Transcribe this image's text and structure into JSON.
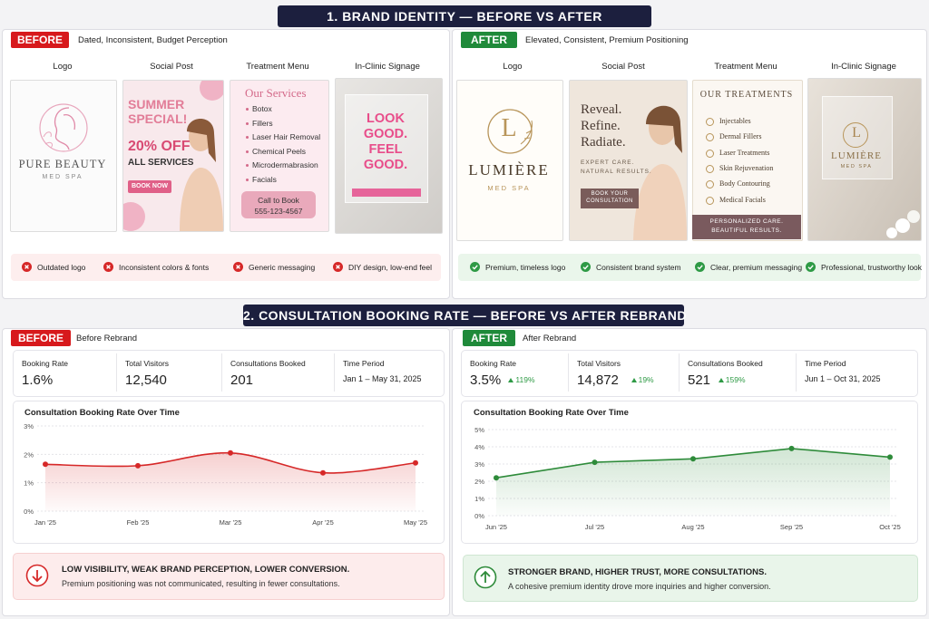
{
  "section1": {
    "title": "1. BRAND IDENTITY — BEFORE VS AFTER",
    "before": {
      "badge": "BEFORE",
      "subtitle": "Dated, Inconsistent, Budget Perception",
      "columns": [
        "Logo",
        "Social Post",
        "Treatment Menu",
        "In-Clinic Signage"
      ],
      "logo": {
        "name": "PURE BEAUTY",
        "tagline": "MED SPA"
      },
      "social": {
        "lines": [
          "SUMMER",
          "SPECIAL!"
        ],
        "offer": "20% OFF",
        "offer_detail": "ALL SERVICES",
        "button": "BOOK NOW"
      },
      "menu": {
        "title": "Our Services",
        "items": [
          "Botox",
          "Fillers",
          "Laser Hair Removal",
          "Chemical Peels",
          "Microdermabrasion",
          "Facials"
        ],
        "cta": [
          "Call to Book",
          "555-123-4567"
        ]
      },
      "signage": [
        "LOOK",
        "GOOD.",
        "FEEL",
        "GOOD."
      ],
      "issues": [
        "Outdated logo",
        "Inconsistent colors & fonts",
        "Generic messaging",
        "DIY design, low-end feel"
      ]
    },
    "after": {
      "badge": "AFTER",
      "subtitle": "Elevated, Consistent, Premium Positioning",
      "columns": [
        "Logo",
        "Social Post",
        "Treatment Menu",
        "In-Clinic Signage"
      ],
      "logo": {
        "monogram": "L",
        "name": "LUMIÈRE",
        "tagline": "MED SPA"
      },
      "social": {
        "lines": [
          "Reveal.",
          "Refine.",
          "Radiate."
        ],
        "detail": [
          "EXPERT CARE.",
          "NATURAL RESULTS."
        ],
        "button": [
          "BOOK YOUR",
          "CONSULTATION"
        ]
      },
      "menu": {
        "title": "OUR TREATMENTS",
        "items": [
          "Injectables",
          "Dermal Fillers",
          "Laser Treatments",
          "Skin Rejuvenation",
          "Body Contouring",
          "Medical Facials"
        ],
        "footer": [
          "PERSONALIZED CARE.",
          "BEAUTIFUL RESULTS."
        ]
      },
      "signage": {
        "monogram": "L",
        "name": "LUMIÈRE",
        "tagline": "MED SPA"
      },
      "benefits": [
        "Premium, timeless logo",
        "Consistent brand system",
        "Clear, premium messaging",
        "Professional, trustworthy look"
      ]
    }
  },
  "section2": {
    "title": "2. CONSULTATION BOOKING RATE — BEFORE VS AFTER REBRAND",
    "before": {
      "badge": "BEFORE",
      "subtitle": "Before Rebrand",
      "stats": [
        {
          "label": "Booking Rate",
          "value": "1.6%"
        },
        {
          "label": "Total Visitors",
          "value": "12,540"
        },
        {
          "label": "Consultations Booked",
          "value": "201"
        },
        {
          "label": "Time Period",
          "value": "Jan 1 – May 31, 2025"
        }
      ],
      "callout": {
        "title": "LOW VISIBILITY, WEAK BRAND PERCEPTION, LOWER CONVERSION.",
        "text": "Premium positioning was not communicated, resulting in fewer consultations."
      }
    },
    "after": {
      "badge": "AFTER",
      "subtitle": "After Rebrand",
      "stats": [
        {
          "label": "Booking Rate",
          "value": "3.5%",
          "change": "119%"
        },
        {
          "label": "Total Visitors",
          "value": "14,872",
          "change": "19%"
        },
        {
          "label": "Consultations Booked",
          "value": "521",
          "change": "159%"
        },
        {
          "label": "Time Period",
          "value": "Jun 1 – Oct 31, 2025"
        }
      ],
      "callout": {
        "title": "STRONGER BRAND, HIGHER TRUST, MORE CONSULTATIONS.",
        "text": "A cohesive premium identity drove more inquiries and higher conversion."
      }
    }
  },
  "chart_data": [
    {
      "type": "line",
      "title": "Consultation Booking Rate Over Time",
      "categories": [
        "Jan '25",
        "Feb '25",
        "Mar '25",
        "Apr '25",
        "May '25"
      ],
      "values": [
        1.65,
        1.6,
        2.05,
        1.35,
        1.7
      ],
      "color": "#d62828",
      "smooth": true,
      "area": true,
      "ylim": [
        0,
        3
      ],
      "yticks": [
        {
          "value": 0,
          "label": "0%"
        },
        {
          "value": 1,
          "label": "1%"
        },
        {
          "value": 2,
          "label": "2%"
        },
        {
          "value": 3,
          "label": "3%"
        }
      ],
      "grid": true
    },
    {
      "type": "line",
      "title": "Consultation Booking Rate Over Time",
      "categories": [
        "Jun '25",
        "Jul '25",
        "Aug '25",
        "Sep '25",
        "Oct '25"
      ],
      "values": [
        2.2,
        3.1,
        3.3,
        3.9,
        3.4
      ],
      "color": "#2e8b3a",
      "smooth": false,
      "area": true,
      "ylim": [
        0,
        5
      ],
      "yticks": [
        {
          "value": 0,
          "label": "0%"
        },
        {
          "value": 1,
          "label": "1%"
        },
        {
          "value": 2,
          "label": "2%"
        },
        {
          "value": 3,
          "label": "3%"
        },
        {
          "value": 4,
          "label": "4%"
        },
        {
          "value": 5,
          "label": "5%"
        }
      ],
      "grid": true
    }
  ]
}
